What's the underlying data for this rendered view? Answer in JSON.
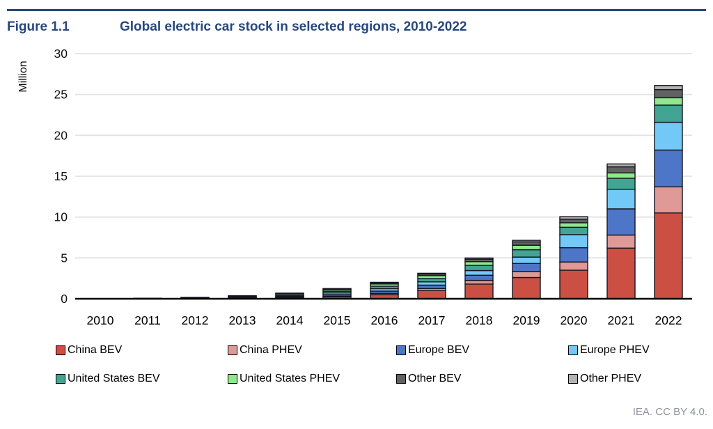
{
  "header": {
    "figure_label": "Figure 1.1",
    "title": "Global electric car stock in selected regions, 2010-2022",
    "accent_color": "#27477d"
  },
  "attribution": "IEA. CC BY 4.0.",
  "chart_data": {
    "type": "bar",
    "stacked": true,
    "title": "Figure 1.1 Global electric car stock in selected regions, 2010-2022",
    "xlabel": "",
    "ylabel": "Million",
    "ylim": [
      0,
      30
    ],
    "yticks": [
      0,
      5,
      10,
      15,
      20,
      25,
      30
    ],
    "grid": "horizontal",
    "grid_color": "#e2e2e2",
    "axis_color": "#000000",
    "bar_border_color": "#15151f",
    "legend_position": "bottom",
    "categories": [
      "2010",
      "2011",
      "2012",
      "2013",
      "2014",
      "2015",
      "2016",
      "2017",
      "2018",
      "2019",
      "2020",
      "2021",
      "2022"
    ],
    "units": "million vehicles",
    "series": [
      {
        "name": "China BEV",
        "color": "#cc4f44",
        "values": [
          0.01,
          0.01,
          0.02,
          0.03,
          0.08,
          0.23,
          0.5,
          1.0,
          1.8,
          2.6,
          3.5,
          6.2,
          10.5
        ]
      },
      {
        "name": "China PHEV",
        "color": "#df9a98",
        "values": [
          0.0,
          0.0,
          0.0,
          0.01,
          0.03,
          0.09,
          0.15,
          0.25,
          0.45,
          0.75,
          1.0,
          1.6,
          3.2
        ]
      },
      {
        "name": "Europe BEV",
        "color": "#4d76c8",
        "values": [
          0.0,
          0.01,
          0.02,
          0.06,
          0.11,
          0.19,
          0.29,
          0.42,
          0.63,
          0.97,
          1.75,
          3.2,
          4.5
        ]
      },
      {
        "name": "Europe PHEV",
        "color": "#72c9f7",
        "values": [
          0.0,
          0.0,
          0.01,
          0.04,
          0.1,
          0.21,
          0.3,
          0.4,
          0.57,
          0.78,
          1.6,
          2.4,
          3.4
        ]
      },
      {
        "name": "United States BEV",
        "color": "#42a493",
        "values": [
          0.0,
          0.01,
          0.03,
          0.08,
          0.14,
          0.21,
          0.3,
          0.4,
          0.64,
          0.9,
          0.9,
          1.35,
          2.1
        ]
      },
      {
        "name": "United States PHEV",
        "color": "#8de98c",
        "values": [
          0.0,
          0.01,
          0.04,
          0.09,
          0.15,
          0.19,
          0.27,
          0.36,
          0.45,
          0.55,
          0.55,
          0.65,
          0.9
        ]
      },
      {
        "name": "Other BEV",
        "color": "#616161",
        "values": [
          0.01,
          0.02,
          0.04,
          0.05,
          0.06,
          0.09,
          0.14,
          0.2,
          0.31,
          0.42,
          0.45,
          0.75,
          1.0
        ]
      },
      {
        "name": "Other PHEV",
        "color": "#b3b3b3",
        "values": [
          0.0,
          0.0,
          0.01,
          0.01,
          0.02,
          0.04,
          0.06,
          0.09,
          0.14,
          0.18,
          0.3,
          0.35,
          0.5
        ]
      }
    ],
    "totals": [
      0.02,
      0.06,
      0.17,
      0.37,
      0.69,
      1.25,
      2.01,
      3.12,
      4.99,
      7.15,
      10.05,
      16.5,
      26.1
    ]
  }
}
